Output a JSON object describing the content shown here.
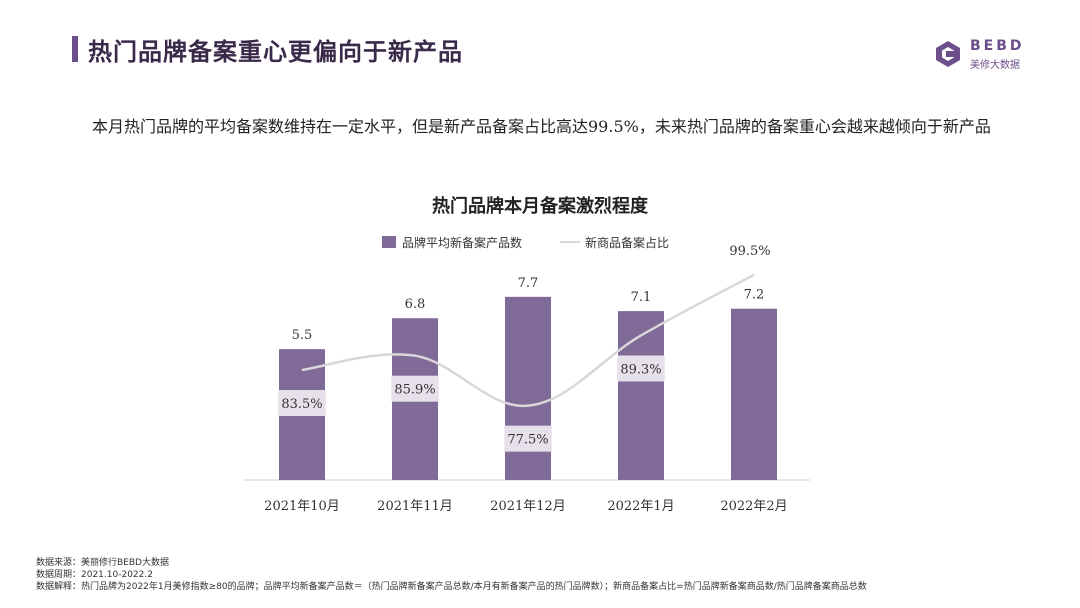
{
  "header": {
    "title": "热门品牌备案重心更偏向于新产品",
    "logo_text": "BEBD",
    "logo_sub": "美修大数据"
  },
  "summary": "本月热门品牌的平均备案数维持在一定水平，但是新产品备案占比高达99.5%，未来热门品牌的备案重心会越来越倾向于新产品",
  "chart_data": {
    "type": "bar",
    "title": "热门品牌本月备案激烈程度",
    "categories": [
      "2021年10月",
      "2021年11月",
      "2021年12月",
      "2022年1月",
      "2022年2月"
    ],
    "series": [
      {
        "name": "品牌平均新备案产品数",
        "type": "bar",
        "values": [
          5.5,
          6.8,
          7.7,
          7.1,
          7.2
        ],
        "labels": [
          "5.5",
          "6.8",
          "7.7",
          "7.1",
          "7.2"
        ]
      },
      {
        "name": "新商品备案占比",
        "type": "line",
        "values": [
          83.5,
          85.9,
          77.5,
          89.3,
          99.5
        ],
        "labels": [
          "83.5%",
          "85.9%",
          "77.5%",
          "89.3%",
          "99.5%"
        ]
      }
    ],
    "bar_ylim": [
      0,
      9.5
    ],
    "line_ylim": [
      65,
      103
    ],
    "colors": {
      "bar": "#806a97",
      "line": "#d9d6dc"
    }
  },
  "footer": {
    "source": "数据来源：美丽修行BEBD大数据",
    "period": "数据周期：2021.10-2022.2",
    "note": "数据解释：热门品牌为2022年1月美修指数≥80的品牌；品牌平均新备案产品数＝（热门品牌新备案产品总数/本月有新备案产品的热门品牌数）；新商品备案占比=热门品牌新备案商品数/热门品牌备案商品总数"
  }
}
